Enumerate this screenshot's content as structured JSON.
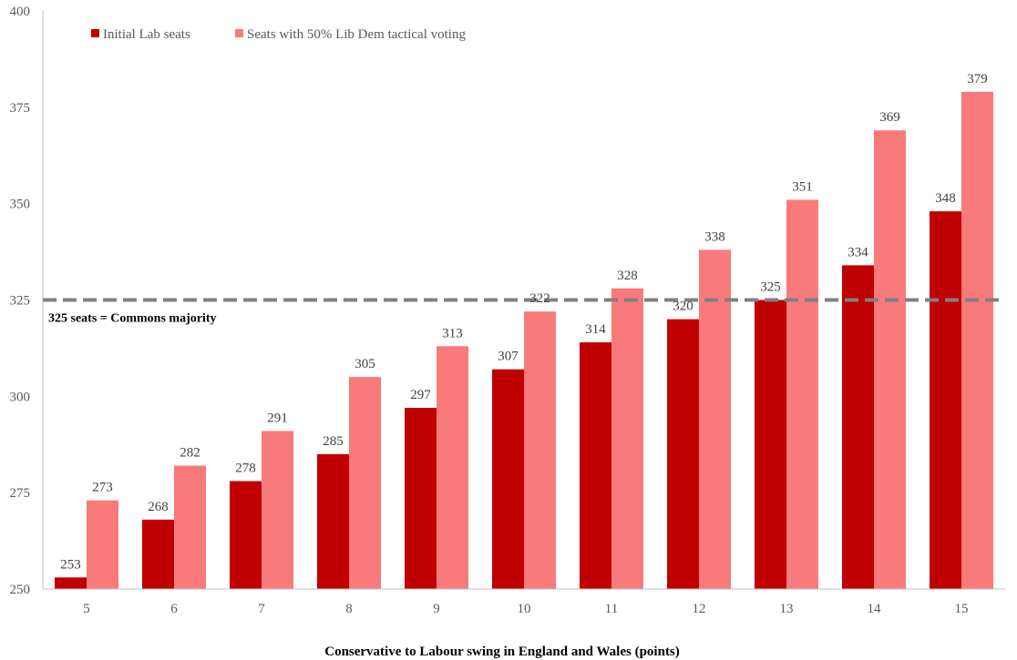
{
  "chart_data": {
    "type": "bar",
    "title": "",
    "xlabel": "Conservative to Labour swing in England and Wales (points)",
    "ylabel": "",
    "ylim": [
      250,
      400
    ],
    "yticks": [
      250,
      275,
      300,
      325,
      350,
      375,
      400
    ],
    "categories": [
      "5",
      "6",
      "7",
      "8",
      "9",
      "10",
      "11",
      "12",
      "13",
      "14",
      "15"
    ],
    "series": [
      {
        "name": "Initial Lab seats",
        "color": "#c00000",
        "values": [
          253,
          268,
          278,
          285,
          297,
          307,
          314,
          320,
          325,
          334,
          348
        ]
      },
      {
        "name": "Seats with 50% Lib Dem tactical voting",
        "color": "#f87a7a",
        "values": [
          273,
          282,
          291,
          305,
          313,
          322,
          328,
          338,
          351,
          369,
          379
        ]
      }
    ],
    "reference_line": {
      "value": 325,
      "label": "325 seats = Commons majority",
      "color": "#808080"
    },
    "legend": "top-left",
    "grid": false
  }
}
